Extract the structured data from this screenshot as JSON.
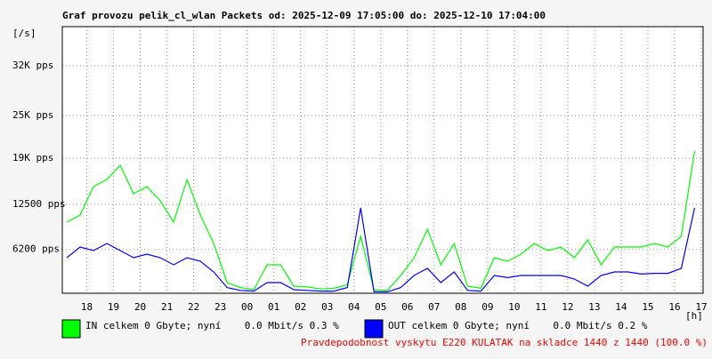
{
  "chart_data": {
    "type": "line",
    "title": "Graf provozu pelik_cl_wlan Packets od: 2025-12-09 17:05:00 do: 2025-12-10 17:04:00",
    "y_label": "[/s]",
    "x_label": "[h]",
    "footer": "Pravdepodobnost vyskytu E220 KULATAK na skladce 1440 z 1440 (100.0 %)",
    "grid": true,
    "xlim": [
      17.083,
      41.067
    ],
    "xticks": [
      18,
      19,
      20,
      21,
      22,
      23,
      {
        "value": 24,
        "label": "00"
      },
      {
        "value": 25,
        "label": "01"
      },
      {
        "value": 26,
        "label": "02"
      },
      {
        "value": 27,
        "label": "03"
      },
      {
        "value": 28,
        "label": "04"
      },
      {
        "value": 29,
        "label": "05"
      },
      {
        "value": 30,
        "label": "06"
      },
      {
        "value": 31,
        "label": "07"
      },
      {
        "value": 32,
        "label": "08"
      },
      {
        "value": 33,
        "label": "09"
      },
      {
        "value": 34,
        "label": "10"
      },
      {
        "value": 35,
        "label": "11"
      },
      {
        "value": 36,
        "label": "12"
      },
      {
        "value": 37,
        "label": "13"
      },
      {
        "value": 38,
        "label": "14"
      },
      {
        "value": 39,
        "label": "15"
      },
      {
        "value": 40,
        "label": "16"
      },
      {
        "value": 41,
        "label": "17"
      }
    ],
    "ylim": [
      0,
      37500
    ],
    "yticks": [
      {
        "value": 6200,
        "label": "6200 pps"
      },
      {
        "value": 12500,
        "label": "12500 pps"
      },
      {
        "value": 19000,
        "label": "19K pps"
      },
      {
        "value": 25000,
        "label": "25K pps"
      },
      {
        "value": 32000,
        "label": "32K pps"
      }
    ],
    "x": [
      17.25,
      17.75,
      18.25,
      18.75,
      19.25,
      19.75,
      20.25,
      20.75,
      21.25,
      21.75,
      22.25,
      22.75,
      23.25,
      23.75,
      24.25,
      24.75,
      25.25,
      25.75,
      26.25,
      26.75,
      27.25,
      27.75,
      28.25,
      28.75,
      29.25,
      29.75,
      30.25,
      30.75,
      31.25,
      31.75,
      32.25,
      32.75,
      33.25,
      33.75,
      34.25,
      34.75,
      35.25,
      35.75,
      36.25,
      36.75,
      37.25,
      37.75,
      38.25,
      38.75,
      39.25,
      39.75,
      40.25,
      40.75
    ],
    "series": [
      {
        "name": "IN celkem 0 Gbyte; nyní    0.0 Mbit/s 0.3 %",
        "color": "#00ff00",
        "values": [
          10000,
          11000,
          15000,
          16000,
          18000,
          14000,
          15000,
          13000,
          10000,
          16000,
          11000,
          7000,
          1500,
          800,
          500,
          4000,
          4000,
          1000,
          900,
          600,
          700,
          1200,
          8000,
          500,
          400,
          2500,
          5000,
          9000,
          4000,
          7000,
          1000,
          700,
          5000,
          4500,
          5500,
          7000,
          6000,
          6500,
          5000,
          7500,
          4000,
          6500,
          6500,
          6500,
          7000,
          6500,
          8000,
          20000
        ]
      },
      {
        "name": "OUT celkem 0 Gbyte; nyní    0.0 Mbit/s 0.2 %",
        "color": "#0000ff",
        "values": [
          5000,
          6500,
          6000,
          7000,
          6000,
          5000,
          5500,
          5000,
          4000,
          5000,
          4500,
          3000,
          800,
          400,
          300,
          1500,
          1500,
          500,
          400,
          300,
          300,
          800,
          12000,
          200,
          200,
          800,
          2500,
          3500,
          1500,
          3000,
          400,
          300,
          2500,
          2200,
          2500,
          2500,
          2500,
          2500,
          2000,
          1000,
          2500,
          3000,
          3000,
          2700,
          2800,
          2800,
          3500,
          12000
        ]
      }
    ]
  }
}
